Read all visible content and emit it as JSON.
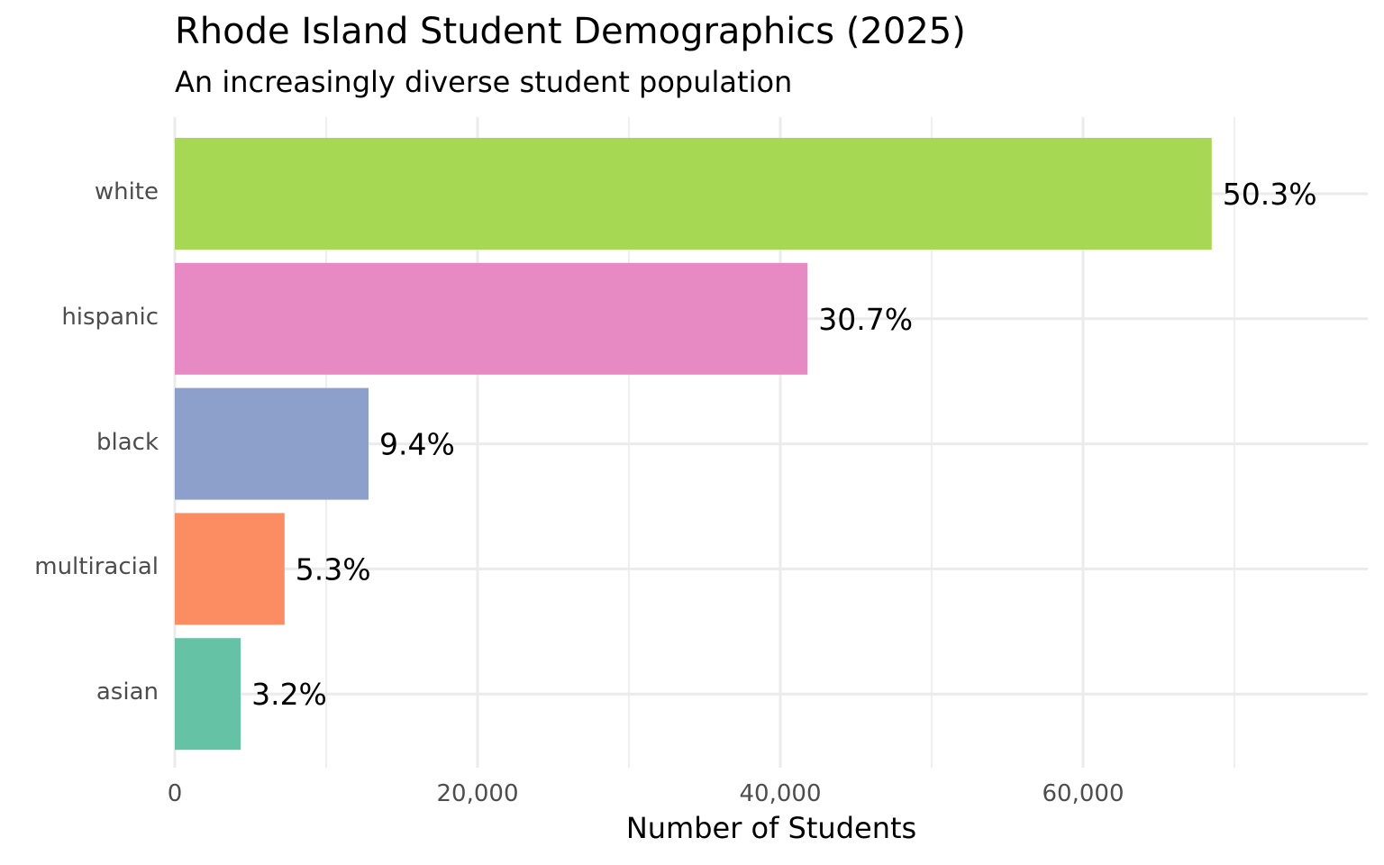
{
  "header": {
    "title": "Rhode Island Student Demographics (2025)",
    "subtitle": "An increasingly diverse student population"
  },
  "axes": {
    "xlabel": "Number of Students",
    "xticks": [
      "0",
      "20,000",
      "40,000",
      "60,000"
    ]
  },
  "bars": [
    {
      "category": "white",
      "value": 68500,
      "label": "50.3%",
      "color": "#A6D854"
    },
    {
      "category": "hispanic",
      "value": 41800,
      "label": "30.7%",
      "color": "#E78AC3"
    },
    {
      "category": "black",
      "value": 12800,
      "label": "9.4%",
      "color": "#8DA0CB"
    },
    {
      "category": "multiracial",
      "value": 7250,
      "label": "5.3%",
      "color": "#FC8D62"
    },
    {
      "category": "asian",
      "value": 4350,
      "label": "3.2%",
      "color": "#66C2A5"
    }
  ],
  "chart_data": {
    "type": "bar",
    "orientation": "horizontal",
    "title": "Rhode Island Student Demographics (2025)",
    "subtitle": "An increasingly diverse student population",
    "xlabel": "Number of Students",
    "ylabel": "",
    "categories": [
      "white",
      "hispanic",
      "black",
      "multiracial",
      "asian"
    ],
    "values": [
      68500,
      41800,
      12800,
      7250,
      4350
    ],
    "data_labels": [
      "50.3%",
      "30.7%",
      "9.4%",
      "5.3%",
      "3.2%"
    ],
    "colors": [
      "#A6D854",
      "#E78AC3",
      "#8DA0CB",
      "#FC8D62",
      "#66C2A5"
    ],
    "xlim": [
      0,
      78800
    ],
    "xticks": [
      0,
      20000,
      40000,
      60000
    ],
    "grid": true,
    "legend": "none"
  }
}
